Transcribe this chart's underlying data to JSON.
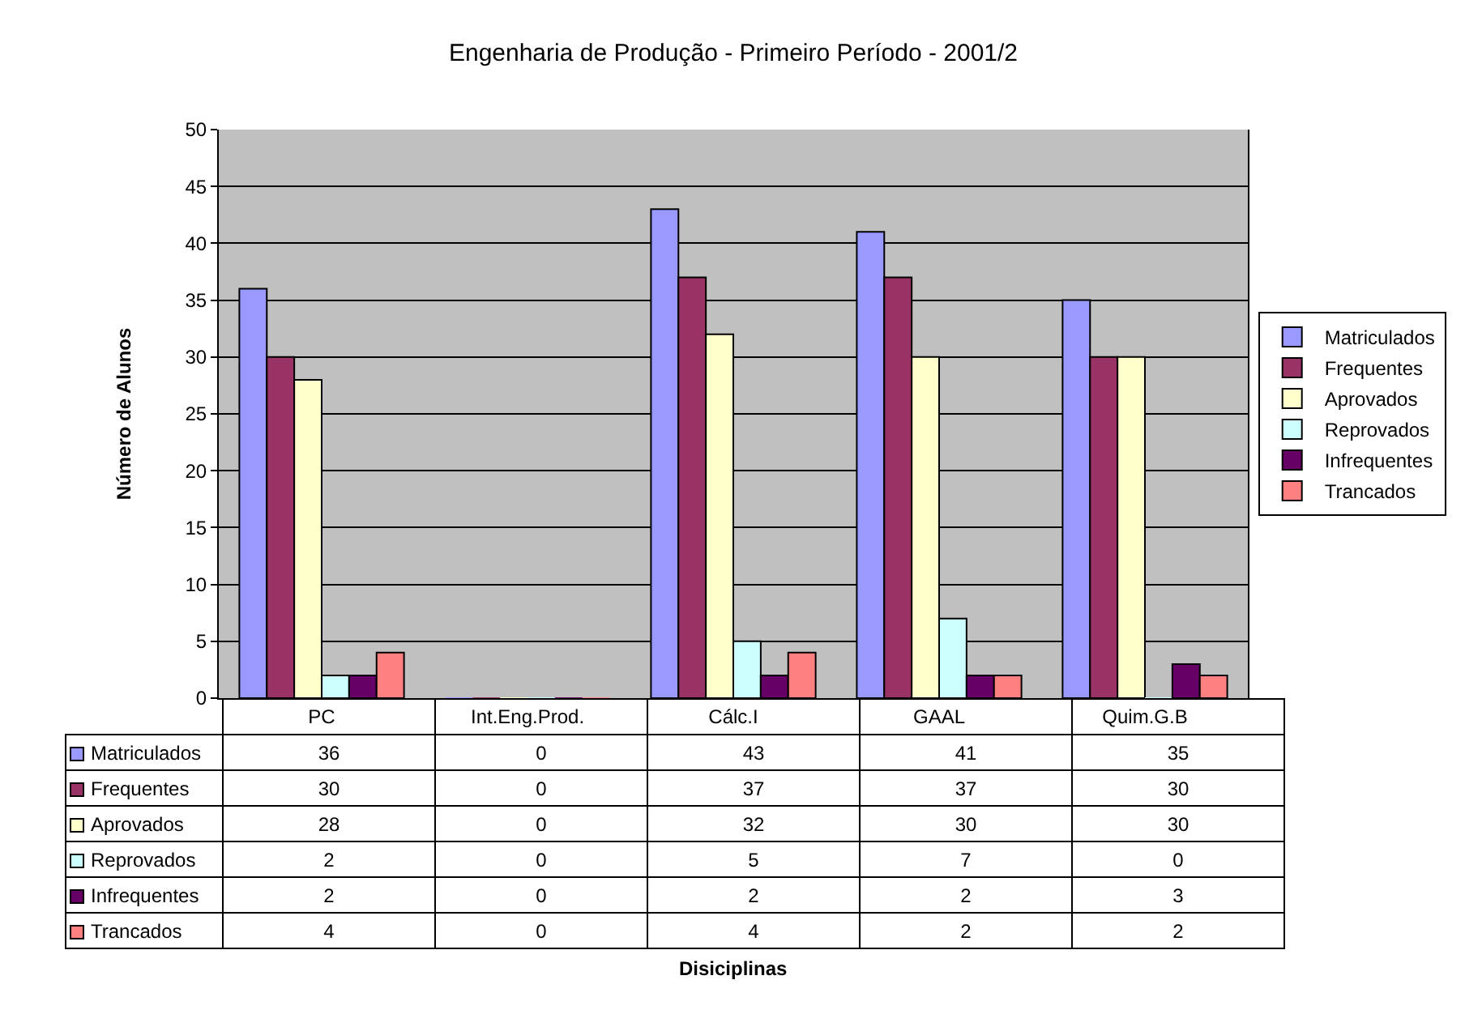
{
  "chart_data": {
    "type": "bar",
    "title": "Engenharia de Produção - Primeiro Período - 2001/2",
    "annotations": [
      "Disiciplinas"
    ],
    "ylabel": "Número de Alunos",
    "categories": [
      "PC",
      "Int.Eng.Prod.",
      "Cálc.I",
      "GAAL",
      "Quim.G.B"
    ],
    "series": [
      {
        "name": "Matriculados",
        "color": "#9999ff",
        "values": [
          36,
          0,
          43,
          41,
          35
        ]
      },
      {
        "name": "Frequentes",
        "color": "#993366",
        "values": [
          30,
          0,
          37,
          37,
          30
        ]
      },
      {
        "name": "Aprovados",
        "color": "#ffffcc",
        "values": [
          28,
          0,
          32,
          30,
          30
        ]
      },
      {
        "name": "Reprovados",
        "color": "#ccffff",
        "values": [
          2,
          0,
          5,
          7,
          0
        ]
      },
      {
        "name": "Infrequentes",
        "color": "#660066",
        "values": [
          2,
          0,
          2,
          2,
          3
        ]
      },
      {
        "name": "Trancados",
        "color": "#ff8080",
        "values": [
          4,
          0,
          4,
          2,
          2
        ]
      }
    ],
    "ylim": [
      0,
      50
    ],
    "yticks": [
      0,
      5,
      10,
      15,
      20,
      25,
      30,
      35,
      40,
      45,
      50
    ],
    "grid": "y",
    "legend": "right",
    "data_labels": true
  }
}
